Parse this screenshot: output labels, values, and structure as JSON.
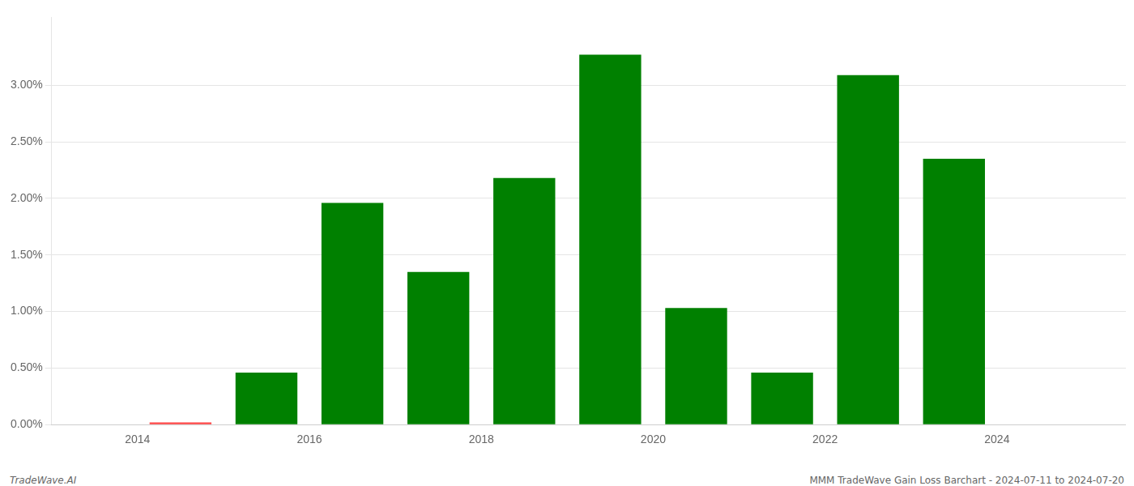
{
  "chart_data": {
    "type": "bar",
    "x": [
      2014.5,
      2015.5,
      2016.5,
      2017.5,
      2018.5,
      2019.5,
      2020.5,
      2021.5,
      2022.5,
      2023.5
    ],
    "values": [
      0.02,
      0.46,
      1.96,
      1.35,
      2.18,
      3.27,
      1.03,
      0.46,
      3.09,
      2.35
    ],
    "colors": [
      "#ff4444",
      "#008000",
      "#008000",
      "#008000",
      "#008000",
      "#008000",
      "#008000",
      "#008000",
      "#008000",
      "#008000"
    ],
    "xlim": [
      2013.0,
      2025.5
    ],
    "xticks": [
      2014,
      2016,
      2018,
      2020,
      2022,
      2024
    ],
    "ylim": [
      0,
      3.6
    ],
    "yticks": [
      {
        "value": 0.0,
        "label": "0.00%"
      },
      {
        "value": 0.5,
        "label": "0.50%"
      },
      {
        "value": 1.0,
        "label": "1.00%"
      },
      {
        "value": 1.5,
        "label": "1.50%"
      },
      {
        "value": 2.0,
        "label": "2.00%"
      },
      {
        "value": 2.5,
        "label": "2.50%"
      },
      {
        "value": 3.0,
        "label": "3.00%"
      }
    ],
    "grid": "y",
    "annotations": [
      "TradeWave.AI",
      "MMM TradeWave Gain Loss Barchart - 2024-07-11 to 2024-07-20"
    ]
  }
}
